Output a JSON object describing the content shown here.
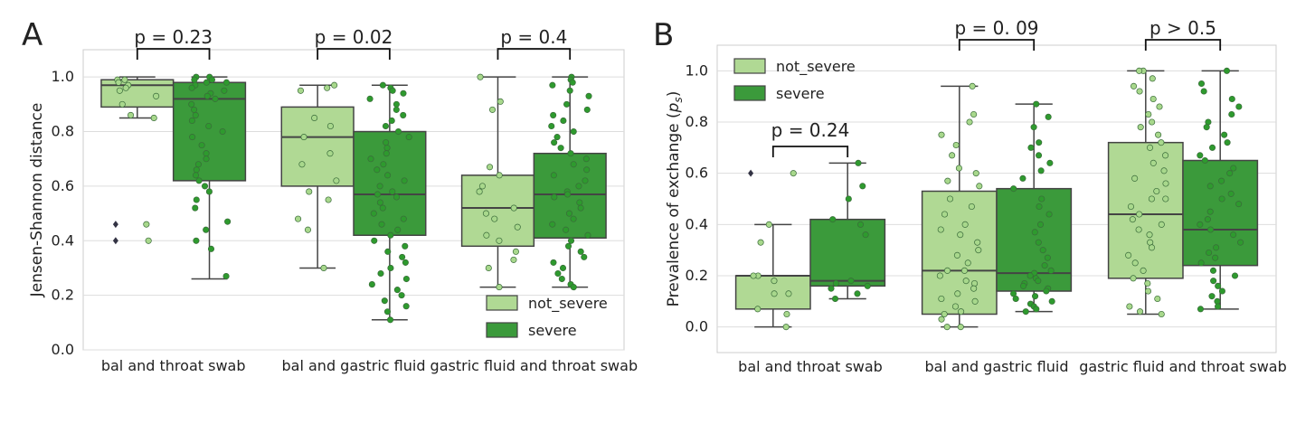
{
  "figure": {
    "panel_a_letter": "A",
    "panel_b_letter": "B"
  },
  "colors": {
    "not_severe": "#b0d994",
    "severe": "#3b9a3b",
    "not_severe_point": "#a8d88c",
    "severe_point": "#2e9a2e",
    "box_edge": "#444444",
    "grid": "#dddddd",
    "frame": "#cccccc"
  },
  "chart_data": [
    {
      "type": "box",
      "panel": "A",
      "title": "",
      "xlabel": "",
      "ylabel": "Jensen-Shannon distance",
      "ylim": [
        0.0,
        1.1
      ],
      "yticks": [
        0.0,
        0.2,
        0.4,
        0.6,
        0.8,
        1.0
      ],
      "ytick_labels": [
        "0.0",
        "0.2",
        "0.4",
        "0.6",
        "0.8",
        "1.0"
      ],
      "grid": true,
      "categories": [
        "bal and throat swab",
        "bal and gastric fluid",
        "gastric fluid and throat swab"
      ],
      "legend": {
        "position": "lower-right",
        "entries": [
          "not_severe",
          "severe"
        ]
      },
      "series": [
        {
          "name": "not_severe",
          "boxes": [
            {
              "q1": 0.89,
              "median": 0.97,
              "q3": 0.99,
              "whisker_low": 0.85,
              "whisker_high": 1.0,
              "outliers": [
                0.46,
                0.4
              ],
              "points": [
                0.99,
                0.99,
                0.98,
                0.97,
                0.96,
                0.95,
                0.93,
                0.9,
                0.86,
                0.85,
                0.46,
                0.4
              ]
            },
            {
              "q1": 0.6,
              "median": 0.78,
              "q3": 0.89,
              "whisker_low": 0.3,
              "whisker_high": 0.97,
              "outliers": [],
              "points": [
                0.97,
                0.96,
                0.95,
                0.85,
                0.82,
                0.78,
                0.72,
                0.68,
                0.62,
                0.58,
                0.55,
                0.48,
                0.44,
                0.3
              ]
            },
            {
              "q1": 0.38,
              "median": 0.52,
              "q3": 0.64,
              "whisker_low": 0.23,
              "whisker_high": 1.0,
              "outliers": [],
              "points": [
                1.0,
                0.91,
                0.88,
                0.67,
                0.64,
                0.6,
                0.58,
                0.52,
                0.5,
                0.48,
                0.45,
                0.42,
                0.4,
                0.36,
                0.33,
                0.3,
                0.23
              ]
            }
          ]
        },
        {
          "name": "severe",
          "boxes": [
            {
              "q1": 0.62,
              "median": 0.92,
              "q3": 0.98,
              "whisker_low": 0.26,
              "whisker_high": 1.0,
              "outliers": [],
              "points": [
                1.0,
                1.0,
                0.99,
                0.99,
                0.98,
                0.98,
                0.97,
                0.96,
                0.95,
                0.94,
                0.93,
                0.92,
                0.9,
                0.88,
                0.86,
                0.84,
                0.82,
                0.8,
                0.78,
                0.75,
                0.72,
                0.7,
                0.68,
                0.66,
                0.64,
                0.62,
                0.6,
                0.58,
                0.55,
                0.52,
                0.47,
                0.44,
                0.4,
                0.37,
                0.27
              ]
            },
            {
              "q1": 0.42,
              "median": 0.57,
              "q3": 0.8,
              "whisker_low": 0.11,
              "whisker_high": 0.97,
              "outliers": [],
              "points": [
                0.97,
                0.96,
                0.95,
                0.94,
                0.92,
                0.9,
                0.88,
                0.86,
                0.84,
                0.82,
                0.8,
                0.78,
                0.76,
                0.74,
                0.72,
                0.7,
                0.68,
                0.66,
                0.64,
                0.62,
                0.6,
                0.58,
                0.57,
                0.56,
                0.54,
                0.52,
                0.5,
                0.48,
                0.46,
                0.44,
                0.42,
                0.4,
                0.38,
                0.36,
                0.34,
                0.32,
                0.3,
                0.28,
                0.26,
                0.24,
                0.22,
                0.2,
                0.18,
                0.16,
                0.14,
                0.11
              ]
            },
            {
              "q1": 0.41,
              "median": 0.57,
              "q3": 0.72,
              "whisker_low": 0.23,
              "whisker_high": 1.0,
              "outliers": [],
              "points": [
                1.0,
                0.99,
                0.98,
                0.97,
                0.95,
                0.93,
                0.9,
                0.88,
                0.86,
                0.84,
                0.82,
                0.8,
                0.78,
                0.76,
                0.74,
                0.72,
                0.7,
                0.68,
                0.66,
                0.64,
                0.62,
                0.6,
                0.58,
                0.57,
                0.56,
                0.54,
                0.52,
                0.5,
                0.48,
                0.46,
                0.44,
                0.42,
                0.4,
                0.38,
                0.36,
                0.34,
                0.32,
                0.3,
                0.28,
                0.26,
                0.24,
                0.23
              ]
            }
          ]
        }
      ],
      "annotations": [
        {
          "text": "p = 0.23",
          "category_index": 0
        },
        {
          "text": "p = 0.02",
          "category_index": 1
        },
        {
          "text": "p = 0.4",
          "category_index": 2
        }
      ]
    },
    {
      "type": "box",
      "panel": "B",
      "title": "",
      "xlabel": "",
      "ylabel": "Prevalence of exchange (",
      "ylabel_symbol": "p",
      "ylabel_subscript": "s",
      "ylabel_close": ")",
      "ylim": [
        -0.1,
        1.1
      ],
      "yticks": [
        0.0,
        0.2,
        0.4,
        0.6,
        0.8,
        1.0
      ],
      "ytick_labels": [
        "0.0",
        "0.2",
        "0.4",
        "0.6",
        "0.8",
        "1.0"
      ],
      "grid": true,
      "categories": [
        "bal and throat swab",
        "bal and gastric fluid",
        "gastric fluid and throat swab"
      ],
      "legend": {
        "position": "top-left",
        "entries": [
          "not_severe",
          "severe"
        ]
      },
      "series": [
        {
          "name": "not_severe",
          "boxes": [
            {
              "q1": 0.07,
              "median": 0.2,
              "q3": 0.2,
              "whisker_low": 0.0,
              "whisker_high": 0.4,
              "outliers": [
                0.6
              ],
              "points": [
                0.6,
                0.4,
                0.33,
                0.2,
                0.2,
                0.18,
                0.13,
                0.13,
                0.07,
                0.05,
                0.0
              ]
            },
            {
              "q1": 0.05,
              "median": 0.22,
              "q3": 0.53,
              "whisker_low": 0.0,
              "whisker_high": 0.94,
              "outliers": [],
              "points": [
                0.94,
                0.83,
                0.8,
                0.75,
                0.71,
                0.67,
                0.62,
                0.6,
                0.57,
                0.55,
                0.5,
                0.47,
                0.44,
                0.4,
                0.38,
                0.36,
                0.33,
                0.3,
                0.28,
                0.25,
                0.22,
                0.22,
                0.2,
                0.18,
                0.17,
                0.15,
                0.13,
                0.11,
                0.1,
                0.08,
                0.06,
                0.05,
                0.03,
                0.0,
                0.0
              ]
            },
            {
              "q1": 0.19,
              "median": 0.44,
              "q3": 0.72,
              "whisker_low": 0.05,
              "whisker_high": 1.0,
              "outliers": [],
              "points": [
                1.0,
                1.0,
                0.97,
                0.94,
                0.92,
                0.89,
                0.86,
                0.83,
                0.8,
                0.78,
                0.75,
                0.72,
                0.7,
                0.67,
                0.64,
                0.61,
                0.58,
                0.56,
                0.53,
                0.5,
                0.5,
                0.47,
                0.44,
                0.42,
                0.4,
                0.38,
                0.36,
                0.33,
                0.31,
                0.28,
                0.25,
                0.22,
                0.19,
                0.17,
                0.14,
                0.11,
                0.08,
                0.06,
                0.05
              ]
            }
          ]
        },
        {
          "name": "severe",
          "boxes": [
            {
              "q1": 0.16,
              "median": 0.18,
              "q3": 0.42,
              "whisker_low": 0.11,
              "whisker_high": 0.64,
              "outliers": [],
              "points": [
                0.64,
                0.55,
                0.5,
                0.42,
                0.4,
                0.36,
                0.18,
                0.17,
                0.16,
                0.15,
                0.13,
                0.11
              ]
            },
            {
              "q1": 0.14,
              "median": 0.21,
              "q3": 0.54,
              "whisker_low": 0.06,
              "whisker_high": 0.87,
              "outliers": [],
              "points": [
                0.87,
                0.82,
                0.78,
                0.72,
                0.7,
                0.67,
                0.64,
                0.61,
                0.58,
                0.54,
                0.5,
                0.47,
                0.44,
                0.4,
                0.37,
                0.33,
                0.3,
                0.27,
                0.24,
                0.22,
                0.21,
                0.2,
                0.19,
                0.18,
                0.17,
                0.16,
                0.15,
                0.14,
                0.13,
                0.12,
                0.11,
                0.1,
                0.09,
                0.08,
                0.07,
                0.06
              ]
            },
            {
              "q1": 0.24,
              "median": 0.38,
              "q3": 0.65,
              "whisker_low": 0.07,
              "whisker_high": 1.0,
              "outliers": [],
              "points": [
                1.0,
                0.95,
                0.92,
                0.89,
                0.86,
                0.83,
                0.8,
                0.78,
                0.75,
                0.72,
                0.7,
                0.67,
                0.65,
                0.62,
                0.6,
                0.57,
                0.55,
                0.52,
                0.5,
                0.48,
                0.45,
                0.42,
                0.4,
                0.38,
                0.36,
                0.33,
                0.31,
                0.29,
                0.27,
                0.25,
                0.22,
                0.2,
                0.18,
                0.16,
                0.14,
                0.12,
                0.1,
                0.08,
                0.07
              ]
            }
          ]
        }
      ],
      "annotations": [
        {
          "text": "p = 0.24",
          "category_index": 0
        },
        {
          "text": "p = 0. 09",
          "category_index": 1
        },
        {
          "text": "p > 0.5",
          "category_index": 2
        }
      ]
    }
  ]
}
